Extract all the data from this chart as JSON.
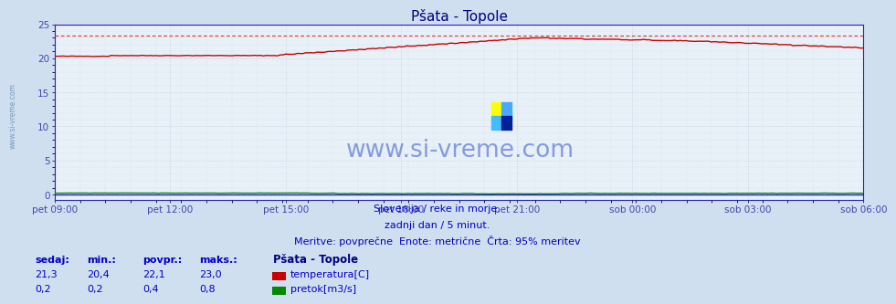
{
  "title": "Pšata - Topole",
  "background_color": "#d0dff0",
  "plot_bg_color": "#e8f0f8",
  "grid_color_major": "#b8c8d8",
  "grid_color_minor": "#c8d8e8",
  "tick_color": "#4444aa",
  "title_color": "#000080",
  "xlabel_ticks": [
    "pet 09:00",
    "pet 12:00",
    "pet 15:00",
    "pet 18:00",
    "pet 21:00",
    "sob 00:00",
    "sob 03:00",
    "sob 06:00"
  ],
  "xlim": [
    0,
    287
  ],
  "ylim": [
    -0.8,
    25
  ],
  "yticks": [
    0,
    5,
    10,
    15,
    20,
    25
  ],
  "temp_color": "#cc0000",
  "flow_color": "#008800",
  "dotted_temp_color": "#dd4444",
  "dotted_flow_color": "#00aa00",
  "baseline_color": "#2222bb",
  "spine_color": "#2222bb",
  "footer_line1": "Slovenija / reke in morje.",
  "footer_line2": "zadnji dan / 5 minut.",
  "footer_line3": "Meritve: povprečne  Enote: metrične  Črta: 95% meritev",
  "footer_color": "#0000cc",
  "legend_title": "Pšata - Topole",
  "legend_color": "#000080",
  "stat_headers": [
    "sedaj:",
    "min.:",
    "povpr.:",
    "maks.:"
  ],
  "stat_temp": [
    "21,3",
    "20,4",
    "22,1",
    "23,0"
  ],
  "stat_flow": [
    "0,2",
    "0,2",
    "0,4",
    "0,8"
  ],
  "stat_color": "#0000cc",
  "watermark": "www.si-vreme.com",
  "watermark_color": "#3355cc",
  "sidebar_text": "www.si-vreme.com",
  "sidebar_color": "#7799bb"
}
